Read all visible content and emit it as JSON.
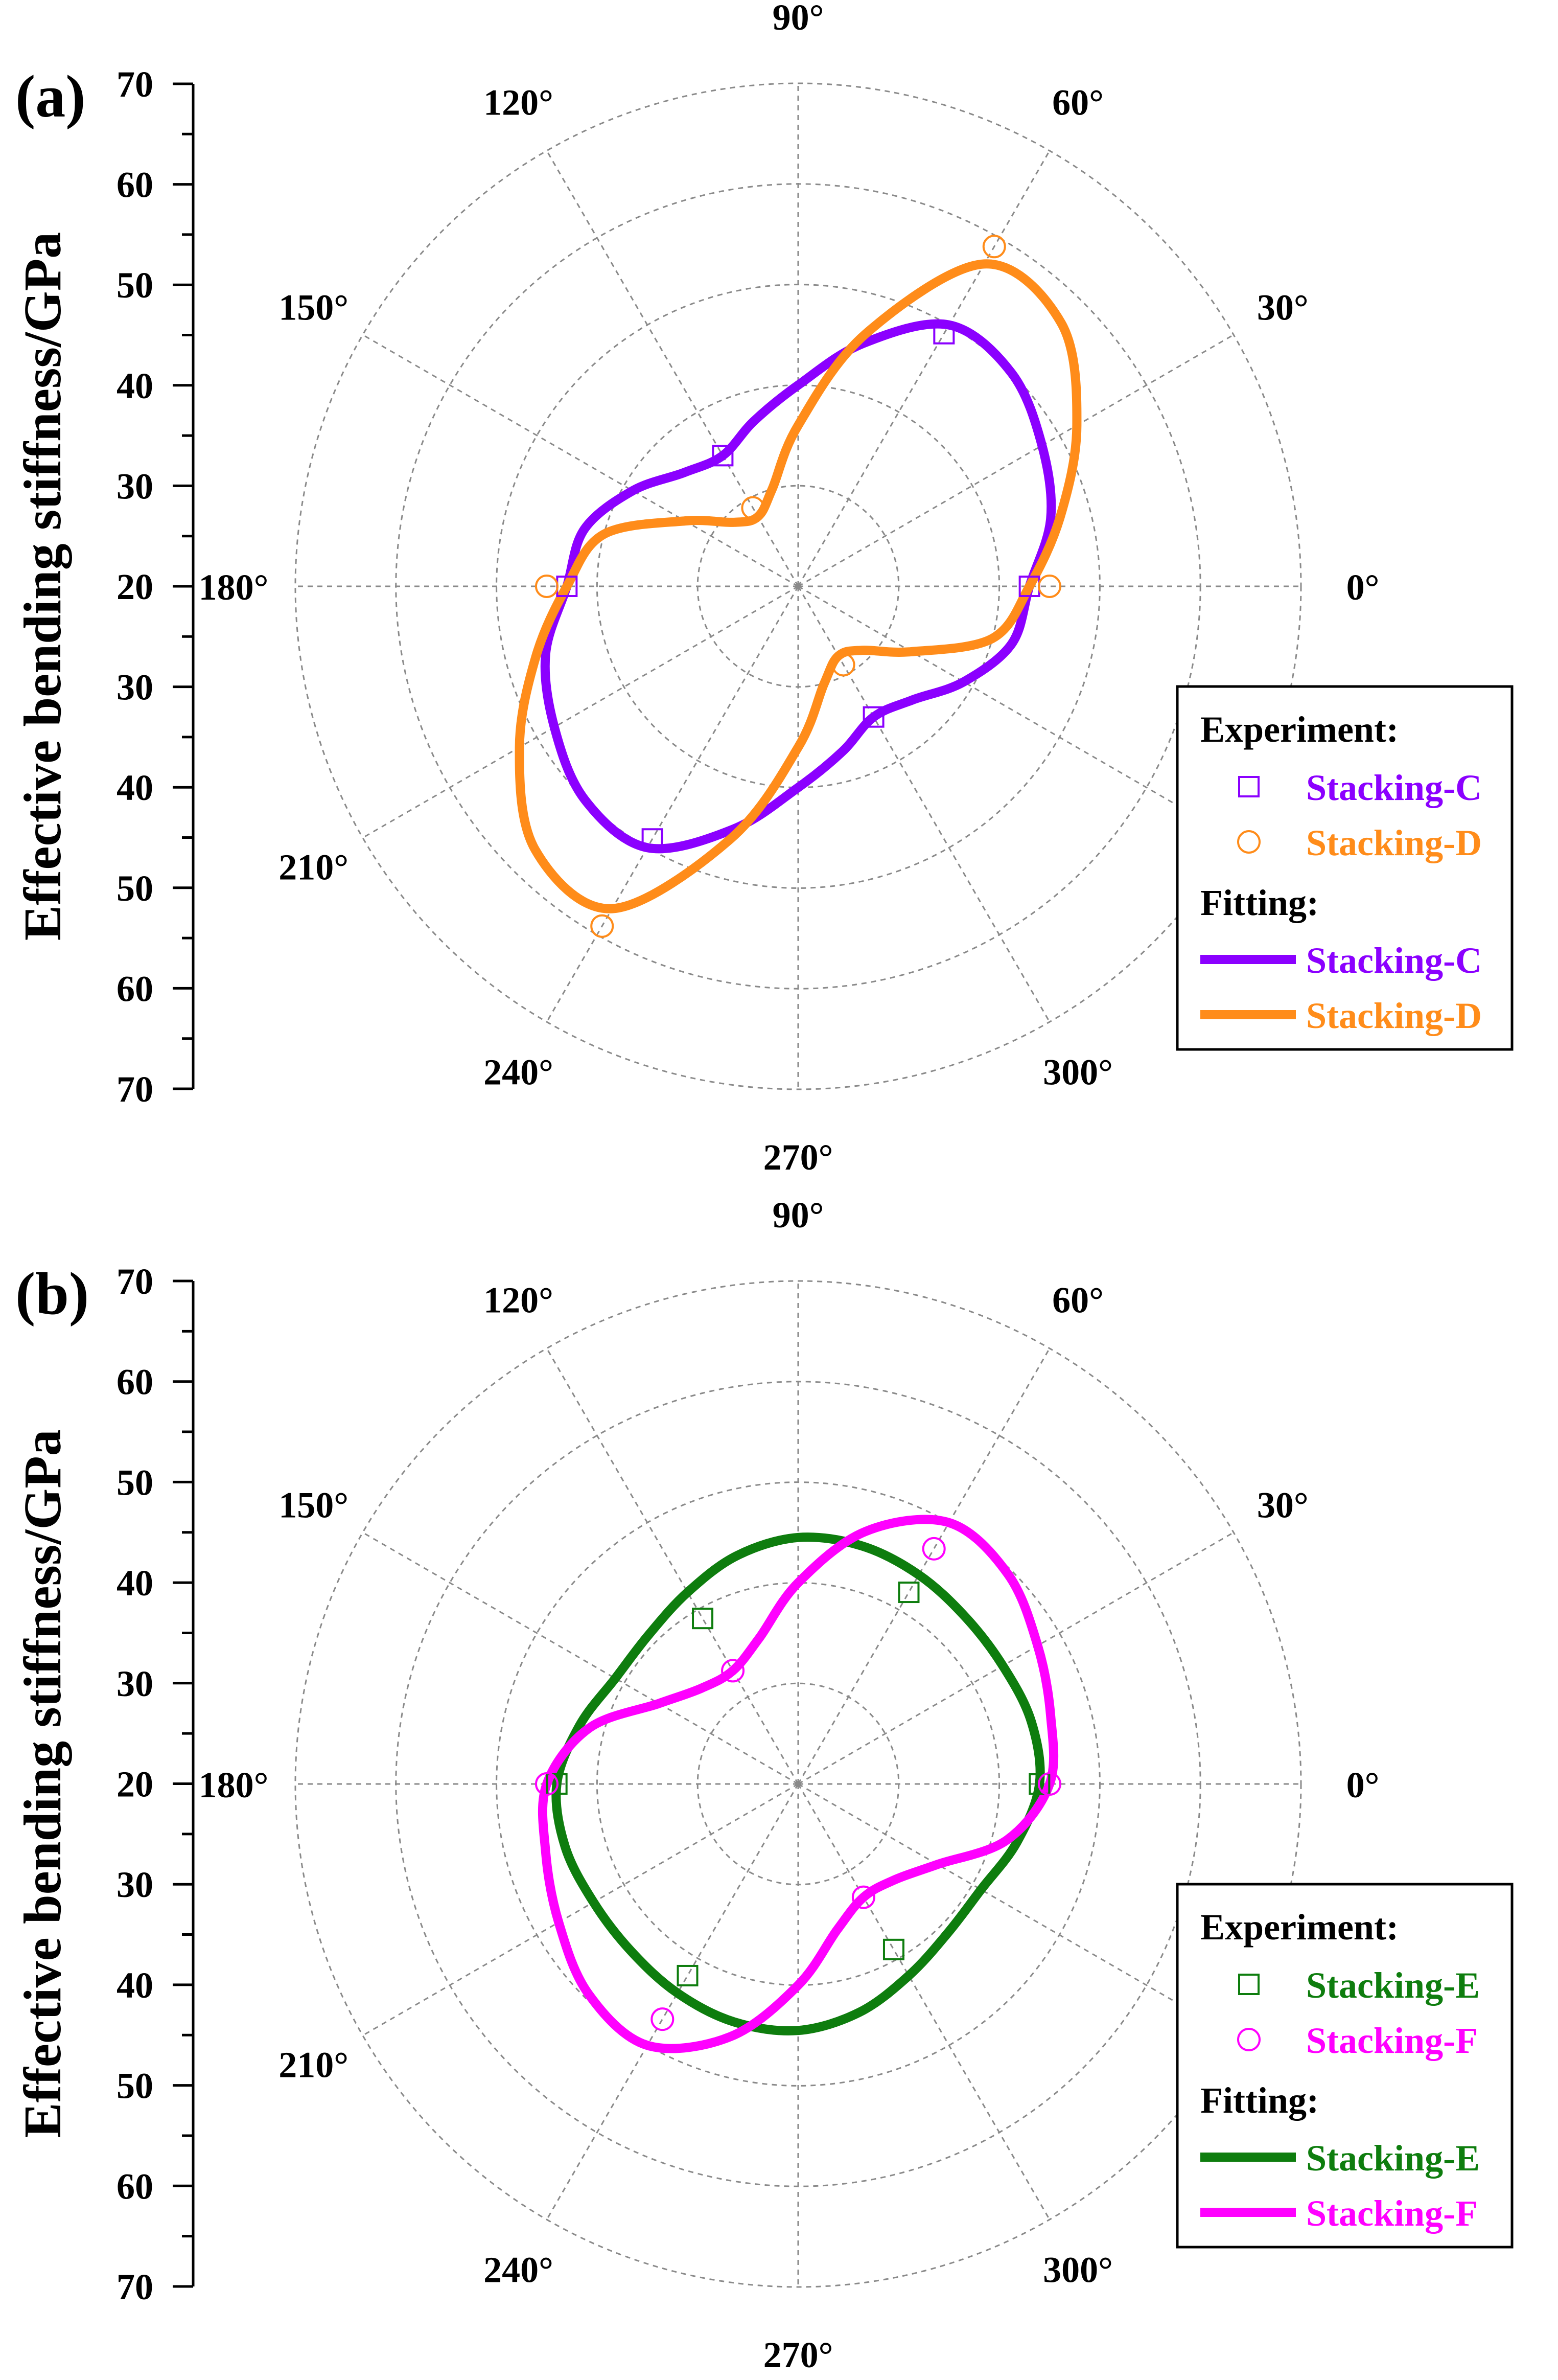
{
  "figure": {
    "ylabel": "Effective bending stiffness/GPa",
    "radial_ticks": [
      "70",
      "60",
      "50",
      "40",
      "30",
      "20",
      "30",
      "40",
      "50",
      "60",
      "70"
    ],
    "angle_labels": [
      "0°",
      "30°",
      "60°",
      "90°",
      "120°",
      "150°",
      "180°",
      "210°",
      "240°",
      "270°",
      "300°"
    ]
  },
  "chart_data": [
    {
      "type": "polar",
      "panel_label": "(a)",
      "ylabel": "Effective bending stiffness/GPa",
      "r_center_value": 20,
      "r_max_value": 70,
      "r_tick_step": 10,
      "angle_step_deg": 30,
      "legend": {
        "experiment_title": "Experiment:",
        "fitting_title": "Fitting:"
      },
      "series": [
        {
          "name": "Stacking-C",
          "color": "#8B00FF",
          "marker": "square",
          "experiment": [
            {
              "angle": 0,
              "value": 43
            },
            {
              "angle": 60,
              "value": 49
            },
            {
              "angle": 120,
              "value": 35
            },
            {
              "angle": 180,
              "value": 43
            },
            {
              "angle": 240,
              "value": 49
            },
            {
              "angle": 300,
              "value": 35
            }
          ],
          "fit_curve": [
            {
              "angle": 0,
              "value": 43
            },
            {
              "angle": 15,
              "value": 46
            },
            {
              "angle": 30,
              "value": 48
            },
            {
              "angle": 45,
              "value": 50
            },
            {
              "angle": 60,
              "value": 50
            },
            {
              "angle": 75,
              "value": 45
            },
            {
              "angle": 90,
              "value": 40
            },
            {
              "angle": 105,
              "value": 37
            },
            {
              "angle": 120,
              "value": 35
            },
            {
              "angle": 135,
              "value": 36
            },
            {
              "angle": 150,
              "value": 39
            },
            {
              "angle": 165,
              "value": 42
            },
            {
              "angle": 180,
              "value": 43
            },
            {
              "angle": 195,
              "value": 46
            },
            {
              "angle": 210,
              "value": 48
            },
            {
              "angle": 225,
              "value": 50
            },
            {
              "angle": 240,
              "value": 50
            },
            {
              "angle": 255,
              "value": 45
            },
            {
              "angle": 270,
              "value": 40
            },
            {
              "angle": 285,
              "value": 37
            },
            {
              "angle": 300,
              "value": 35
            },
            {
              "angle": 315,
              "value": 36
            },
            {
              "angle": 330,
              "value": 39
            },
            {
              "angle": 345,
              "value": 42
            }
          ]
        },
        {
          "name": "Stacking-D",
          "color": "#FF8C1A",
          "marker": "circle",
          "experiment": [
            {
              "angle": 0,
              "value": 45
            },
            {
              "angle": 60,
              "value": 59
            },
            {
              "angle": 120,
              "value": 29
            },
            {
              "angle": 180,
              "value": 45
            },
            {
              "angle": 240,
              "value": 59
            },
            {
              "angle": 300,
              "value": 29
            }
          ],
          "fit_curve": [
            {
              "angle": 0,
              "value": 43
            },
            {
              "angle": 15,
              "value": 47
            },
            {
              "angle": 30,
              "value": 52
            },
            {
              "angle": 45,
              "value": 57
            },
            {
              "angle": 60,
              "value": 57
            },
            {
              "angle": 75,
              "value": 46
            },
            {
              "angle": 90,
              "value": 36
            },
            {
              "angle": 105,
              "value": 30
            },
            {
              "angle": 120,
              "value": 28
            },
            {
              "angle": 135,
              "value": 29
            },
            {
              "angle": 150,
              "value": 33
            },
            {
              "angle": 165,
              "value": 40
            },
            {
              "angle": 180,
              "value": 43
            },
            {
              "angle": 195,
              "value": 47
            },
            {
              "angle": 210,
              "value": 52
            },
            {
              "angle": 225,
              "value": 57
            },
            {
              "angle": 240,
              "value": 57
            },
            {
              "angle": 255,
              "value": 46
            },
            {
              "angle": 270,
              "value": 36
            },
            {
              "angle": 285,
              "value": 30
            },
            {
              "angle": 300,
              "value": 28
            },
            {
              "angle": 315,
              "value": 29
            },
            {
              "angle": 330,
              "value": 33
            },
            {
              "angle": 345,
              "value": 40
            }
          ]
        }
      ]
    },
    {
      "type": "polar",
      "panel_label": "(b)",
      "ylabel": "Effective bending stiffness/GPa",
      "r_center_value": 20,
      "r_max_value": 70,
      "r_tick_step": 10,
      "angle_step_deg": 30,
      "legend": {
        "experiment_title": "Experiment:",
        "fitting_title": "Fitting:"
      },
      "series": [
        {
          "name": "Stacking-E",
          "color": "#0E7D0E",
          "marker": "square",
          "experiment": [
            {
              "angle": 0,
              "value": 44
            },
            {
              "angle": 60,
              "value": 42
            },
            {
              "angle": 120,
              "value": 39
            },
            {
              "angle": 180,
              "value": 44
            },
            {
              "angle": 240,
              "value": 42
            },
            {
              "angle": 300,
              "value": 39
            }
          ],
          "fit_curve": [
            {
              "angle": 0,
              "value": 44
            },
            {
              "angle": 15,
              "value": 44
            },
            {
              "angle": 30,
              "value": 43.5
            },
            {
              "angle": 45,
              "value": 43.5
            },
            {
              "angle": 60,
              "value": 44
            },
            {
              "angle": 75,
              "value": 44.5
            },
            {
              "angle": 90,
              "value": 44.5
            },
            {
              "angle": 105,
              "value": 43.5
            },
            {
              "angle": 120,
              "value": 42
            },
            {
              "angle": 135,
              "value": 41
            },
            {
              "angle": 150,
              "value": 41
            },
            {
              "angle": 165,
              "value": 42.5
            },
            {
              "angle": 180,
              "value": 44
            },
            {
              "angle": 195,
              "value": 44
            },
            {
              "angle": 210,
              "value": 43.5
            },
            {
              "angle": 225,
              "value": 43.5
            },
            {
              "angle": 240,
              "value": 44
            },
            {
              "angle": 255,
              "value": 44.5
            },
            {
              "angle": 270,
              "value": 44.5
            },
            {
              "angle": 285,
              "value": 43.5
            },
            {
              "angle": 300,
              "value": 42
            },
            {
              "angle": 315,
              "value": 41
            },
            {
              "angle": 330,
              "value": 41
            },
            {
              "angle": 345,
              "value": 42.5
            }
          ]
        },
        {
          "name": "Stacking-F",
          "color": "#FF00FF",
          "marker": "circle",
          "experiment": [
            {
              "angle": 0,
              "value": 45
            },
            {
              "angle": 60,
              "value": 47
            },
            {
              "angle": 120,
              "value": 33
            },
            {
              "angle": 180,
              "value": 45
            },
            {
              "angle": 240,
              "value": 47
            },
            {
              "angle": 300,
              "value": 33
            }
          ],
          "fit_curve": [
            {
              "angle": 0,
              "value": 45
            },
            {
              "angle": 15,
              "value": 46
            },
            {
              "angle": 30,
              "value": 47.5
            },
            {
              "angle": 45,
              "value": 49.5
            },
            {
              "angle": 60,
              "value": 50
            },
            {
              "angle": 75,
              "value": 46
            },
            {
              "angle": 90,
              "value": 40
            },
            {
              "angle": 105,
              "value": 35
            },
            {
              "angle": 120,
              "value": 33
            },
            {
              "angle": 135,
              "value": 33.5
            },
            {
              "angle": 150,
              "value": 36
            },
            {
              "angle": 165,
              "value": 41.5
            },
            {
              "angle": 180,
              "value": 45
            },
            {
              "angle": 195,
              "value": 46
            },
            {
              "angle": 210,
              "value": 47.5
            },
            {
              "angle": 225,
              "value": 49.5
            },
            {
              "angle": 240,
              "value": 50
            },
            {
              "angle": 255,
              "value": 46
            },
            {
              "angle": 270,
              "value": 40
            },
            {
              "angle": 285,
              "value": 35
            },
            {
              "angle": 300,
              "value": 33
            },
            {
              "angle": 315,
              "value": 33.5
            },
            {
              "angle": 330,
              "value": 36
            },
            {
              "angle": 345,
              "value": 41.5
            }
          ]
        }
      ]
    }
  ]
}
